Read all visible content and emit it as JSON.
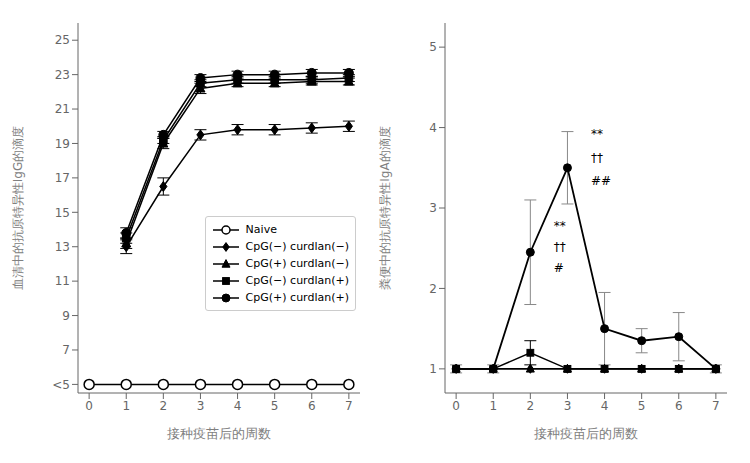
{
  "chart_data": [
    {
      "type": "line",
      "xlabel": "接种疫苗后的周数",
      "ylabel": "血清中的抗原特异性IgG的滴度",
      "xlim": [
        -0.3,
        7.3
      ],
      "xticks": [
        0,
        1,
        2,
        3,
        4,
        5,
        6,
        7
      ],
      "ylim": [
        4.5,
        26
      ],
      "yticks": [
        {
          "value": 5,
          "label": "<5"
        },
        7,
        9,
        11,
        13,
        15,
        17,
        19,
        21,
        23,
        25
      ],
      "grid": false,
      "legend": "right",
      "series": [
        {
          "name": "Naive",
          "color": "black",
          "marker": "circle_open",
          "x": [
            0,
            1,
            2,
            3,
            4,
            5,
            6,
            7
          ],
          "values": [
            5,
            5,
            5,
            5,
            5,
            5,
            5,
            5
          ],
          "yerr": [
            0,
            0,
            0,
            0,
            0,
            0,
            0,
            0
          ]
        },
        {
          "name": "CpG(−) curdlan(−)",
          "color": "black",
          "marker": "diamond",
          "x": [
            1,
            2,
            3,
            4,
            5,
            6,
            7
          ],
          "values": [
            13.0,
            16.5,
            19.5,
            19.8,
            19.8,
            19.9,
            20.0
          ],
          "yerr": [
            0.4,
            0.5,
            0.3,
            0.3,
            0.3,
            0.3,
            0.3
          ]
        },
        {
          "name": "CpG(+) curdlan(−)",
          "color": "black",
          "marker": "triangle",
          "x": [
            1,
            2,
            3,
            4,
            5,
            6,
            7
          ],
          "values": [
            13.2,
            19.0,
            22.2,
            22.5,
            22.5,
            22.6,
            22.6
          ],
          "yerr": [
            0.3,
            0.3,
            0.3,
            0.2,
            0.2,
            0.2,
            0.2
          ]
        },
        {
          "name": "CpG(−) curdlan(+)",
          "color": "black",
          "marker": "square",
          "x": [
            1,
            2,
            3,
            4,
            5,
            6,
            7
          ],
          "values": [
            13.5,
            19.2,
            22.5,
            22.7,
            22.7,
            22.7,
            22.8
          ],
          "yerr": [
            0.3,
            0.2,
            0.2,
            0.2,
            0.2,
            0.2,
            0.2
          ]
        },
        {
          "name": "CpG(+) curdlan(+)",
          "color": "black",
          "marker": "circle",
          "x": [
            1,
            2,
            3,
            4,
            5,
            6,
            7
          ],
          "values": [
            13.8,
            19.5,
            22.8,
            23.0,
            23.0,
            23.1,
            23.1
          ],
          "yerr": [
            0.3,
            0.2,
            0.2,
            0.2,
            0.2,
            0.2,
            0.2
          ]
        }
      ]
    },
    {
      "type": "line",
      "xlabel": "接种疫苗后的周数",
      "ylabel": "粪便中的抗原特异性IgA的滴度",
      "xlim": [
        -0.3,
        7.3
      ],
      "xticks": [
        0,
        1,
        2,
        3,
        4,
        5,
        6,
        7
      ],
      "ylim": [
        0.7,
        5.3
      ],
      "yticks": [
        1,
        2,
        3,
        4,
        5
      ],
      "grid": false,
      "series": [
        {
          "color": "black",
          "marker": "diamond",
          "x": [
            0,
            1,
            2,
            3,
            4,
            5,
            6,
            7
          ],
          "values": [
            1.0,
            1.0,
            1.0,
            1.0,
            1.0,
            1.0,
            1.0,
            1.0
          ],
          "yerr": [
            0,
            0,
            0,
            0,
            0,
            0,
            0,
            0
          ]
        },
        {
          "color": "black",
          "marker": "triangle",
          "x": [
            0,
            1,
            2,
            3,
            4,
            5,
            6,
            7
          ],
          "values": [
            1.0,
            1.0,
            1.0,
            1.0,
            1.0,
            1.0,
            1.0,
            1.0
          ],
          "yerr": [
            0,
            0,
            0,
            0,
            0,
            0,
            0,
            0
          ]
        },
        {
          "color": "black",
          "marker": "square",
          "x": [
            0,
            1,
            2,
            3,
            4,
            5,
            6,
            7
          ],
          "values": [
            1.0,
            1.0,
            1.2,
            1.0,
            1.0,
            1.0,
            1.0,
            1.0
          ],
          "yerr": [
            0,
            0,
            0.15,
            0,
            0,
            0,
            0,
            0
          ]
        },
        {
          "color": "black",
          "marker": "circle",
          "x": [
            0,
            1,
            2,
            3,
            4,
            5,
            6,
            7
          ],
          "values": [
            1.0,
            1.0,
            2.45,
            3.5,
            1.5,
            1.35,
            1.4,
            1.0
          ],
          "yerr": [
            0.05,
            0.05,
            0.65,
            0.45,
            0.45,
            0.15,
            0.3,
            0.05
          ]
        }
      ],
      "annotations": [
        {
          "x": 2.58,
          "y": 2.78,
          "text": "**"
        },
        {
          "x": 2.58,
          "y": 2.52,
          "text": "††"
        },
        {
          "x": 2.58,
          "y": 2.26,
          "text": "#"
        },
        {
          "x": 3.58,
          "y": 3.92,
          "text": "**"
        },
        {
          "x": 3.58,
          "y": 3.63,
          "text": "††"
        },
        {
          "x": 3.58,
          "y": 3.34,
          "text": "##"
        }
      ]
    }
  ]
}
